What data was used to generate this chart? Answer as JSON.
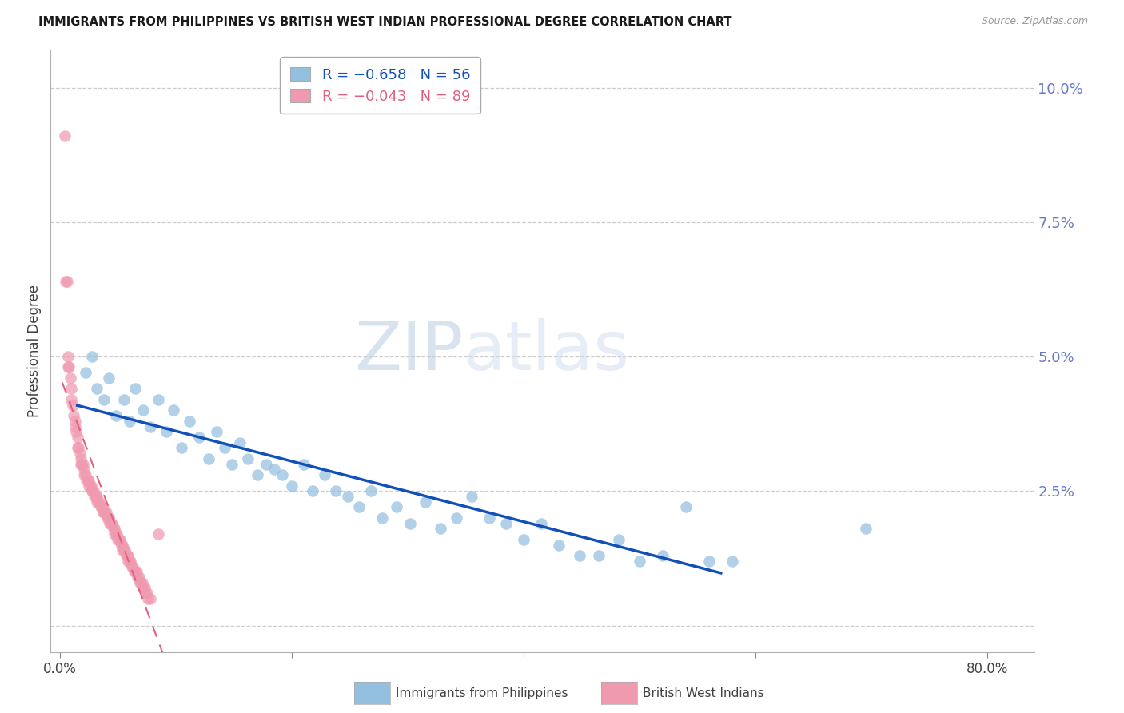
{
  "title": "IMMIGRANTS FROM PHILIPPINES VS BRITISH WEST INDIAN PROFESSIONAL DEGREE CORRELATION CHART",
  "source": "Source: ZipAtlas.com",
  "ylabel": "Professional Degree",
  "xlim": [
    -0.008,
    0.84
  ],
  "ylim": [
    -0.005,
    0.107
  ],
  "blue_color": "#94c0e0",
  "pink_color": "#f09ab0",
  "blue_line_color": "#1050b8",
  "pink_line_color": "#e06080",
  "background_color": "#ffffff",
  "grid_color": "#cccccc",
  "title_color": "#1a1a1a",
  "yaxis_color": "#6878c8",
  "philippines_x": [
    0.022,
    0.028,
    0.032,
    0.038,
    0.042,
    0.048,
    0.055,
    0.06,
    0.065,
    0.072,
    0.078,
    0.085,
    0.092,
    0.098,
    0.105,
    0.112,
    0.12,
    0.128,
    0.135,
    0.142,
    0.148,
    0.155,
    0.162,
    0.17,
    0.178,
    0.185,
    0.192,
    0.2,
    0.21,
    0.218,
    0.228,
    0.238,
    0.248,
    0.258,
    0.268,
    0.278,
    0.29,
    0.302,
    0.315,
    0.328,
    0.342,
    0.355,
    0.37,
    0.385,
    0.4,
    0.415,
    0.43,
    0.448,
    0.465,
    0.482,
    0.5,
    0.52,
    0.54,
    0.56,
    0.58,
    0.695
  ],
  "philippines_y": [
    0.047,
    0.05,
    0.044,
    0.042,
    0.046,
    0.039,
    0.042,
    0.038,
    0.044,
    0.04,
    0.037,
    0.042,
    0.036,
    0.04,
    0.033,
    0.038,
    0.035,
    0.031,
    0.036,
    0.033,
    0.03,
    0.034,
    0.031,
    0.028,
    0.03,
    0.029,
    0.028,
    0.026,
    0.03,
    0.025,
    0.028,
    0.025,
    0.024,
    0.022,
    0.025,
    0.02,
    0.022,
    0.019,
    0.023,
    0.018,
    0.02,
    0.024,
    0.02,
    0.019,
    0.016,
    0.019,
    0.015,
    0.013,
    0.013,
    0.016,
    0.012,
    0.013,
    0.022,
    0.012,
    0.012,
    0.018
  ],
  "bwi_x": [
    0.004,
    0.005,
    0.006,
    0.007,
    0.007,
    0.008,
    0.009,
    0.01,
    0.01,
    0.011,
    0.012,
    0.013,
    0.013,
    0.014,
    0.015,
    0.015,
    0.016,
    0.017,
    0.018,
    0.018,
    0.019,
    0.02,
    0.021,
    0.021,
    0.022,
    0.023,
    0.024,
    0.025,
    0.025,
    0.026,
    0.027,
    0.028,
    0.028,
    0.029,
    0.03,
    0.031,
    0.032,
    0.032,
    0.033,
    0.034,
    0.035,
    0.036,
    0.037,
    0.037,
    0.038,
    0.039,
    0.04,
    0.041,
    0.042,
    0.042,
    0.043,
    0.044,
    0.045,
    0.046,
    0.047,
    0.047,
    0.048,
    0.049,
    0.05,
    0.051,
    0.052,
    0.053,
    0.054,
    0.054,
    0.055,
    0.056,
    0.057,
    0.058,
    0.059,
    0.059,
    0.06,
    0.061,
    0.062,
    0.063,
    0.064,
    0.065,
    0.066,
    0.067,
    0.068,
    0.069,
    0.07,
    0.071,
    0.072,
    0.073,
    0.074,
    0.075,
    0.076,
    0.078,
    0.085
  ],
  "bwi_y": [
    0.091,
    0.064,
    0.064,
    0.05,
    0.048,
    0.048,
    0.046,
    0.044,
    0.042,
    0.041,
    0.039,
    0.038,
    0.037,
    0.036,
    0.035,
    0.033,
    0.033,
    0.032,
    0.031,
    0.03,
    0.03,
    0.03,
    0.029,
    0.028,
    0.028,
    0.027,
    0.027,
    0.027,
    0.026,
    0.026,
    0.026,
    0.025,
    0.025,
    0.025,
    0.024,
    0.024,
    0.024,
    0.023,
    0.023,
    0.023,
    0.022,
    0.022,
    0.022,
    0.021,
    0.021,
    0.021,
    0.021,
    0.02,
    0.02,
    0.02,
    0.019,
    0.019,
    0.019,
    0.018,
    0.018,
    0.017,
    0.017,
    0.017,
    0.016,
    0.016,
    0.016,
    0.015,
    0.015,
    0.014,
    0.014,
    0.014,
    0.013,
    0.013,
    0.013,
    0.012,
    0.012,
    0.012,
    0.011,
    0.011,
    0.01,
    0.01,
    0.01,
    0.009,
    0.009,
    0.008,
    0.008,
    0.008,
    0.007,
    0.007,
    0.006,
    0.006,
    0.005,
    0.005,
    0.017
  ],
  "bwi_line_x_start": 0.002,
  "bwi_line_x_end": 0.82,
  "phil_line_x_start": 0.015,
  "phil_line_x_end": 0.57
}
